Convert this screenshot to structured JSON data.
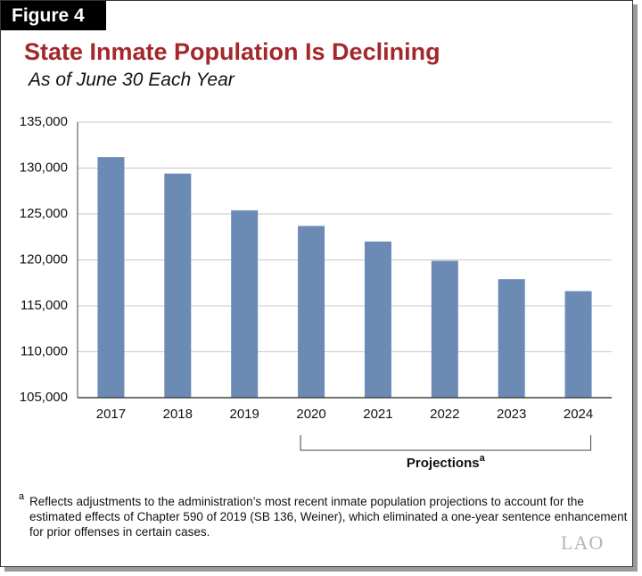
{
  "chart_data": {
    "type": "bar",
    "figure_label": "Figure 4",
    "title": "State Inmate Population Is Declining",
    "subtitle": "As of June 30 Each Year",
    "categories": [
      "2017",
      "2018",
      "2019",
      "2020",
      "2021",
      "2022",
      "2023",
      "2024"
    ],
    "values": [
      131200,
      129400,
      125400,
      123700,
      122000,
      119900,
      117900,
      116600
    ],
    "color": "#6b8bb5",
    "ylim": [
      105000,
      135000
    ],
    "yticks": [
      {
        "value": 105000,
        "label": "105,000"
      },
      {
        "value": 110000,
        "label": "110,000"
      },
      {
        "value": 115000,
        "label": "115,000"
      },
      {
        "value": 120000,
        "label": "120,000"
      },
      {
        "value": 125000,
        "label": "125,000"
      },
      {
        "value": 130000,
        "label": "130,000"
      },
      {
        "value": 135000,
        "label": "135,000"
      }
    ],
    "grid": true,
    "annotation": {
      "label": "Projections",
      "marker": "a"
    },
    "footnote": {
      "marker": "a",
      "text": "Reflects adjustments to the administration’s most recent inmate population projections to account for the estimated effects of Chapter 590 of 2019 (SB 136, Weiner), which eliminated a one-year sentence enhancement for prior offenses in certain cases."
    },
    "logo": "LAO"
  }
}
